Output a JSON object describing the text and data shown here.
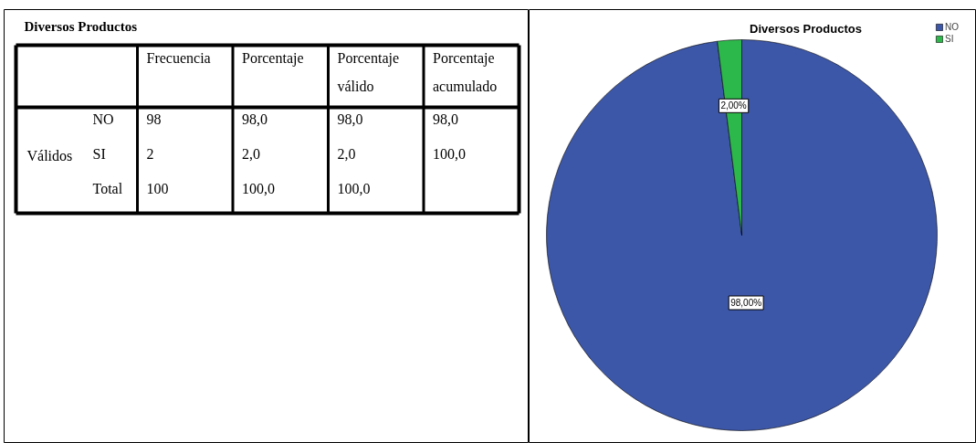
{
  "chart_data": [
    {
      "type": "other",
      "title": "Diversos Productos",
      "categories": [
        "Frecuencia",
        "Porcentaje",
        "Porcentaje válido",
        "Porcentaje acumulado"
      ],
      "y_categories": [
        "NO",
        "SI",
        "Total"
      ],
      "annotations": [
        "Válidos"
      ],
      "cell_labels": [
        [
          "98",
          "98,0",
          "98,0",
          "98,0"
        ],
        [
          "2",
          "2,0",
          "2,0",
          "100,0"
        ],
        [
          "100",
          "100,0",
          "100,0",
          null
        ]
      ]
    },
    {
      "type": "pie",
      "title": "Diversos Productos",
      "categories": [
        "NO",
        "SI"
      ],
      "values": [
        98,
        2
      ],
      "colors": [
        "#3d57a8",
        "#2db84b"
      ],
      "value_labels": [
        "98,00%",
        "2,00%"
      ],
      "legend": "top right"
    }
  ]
}
